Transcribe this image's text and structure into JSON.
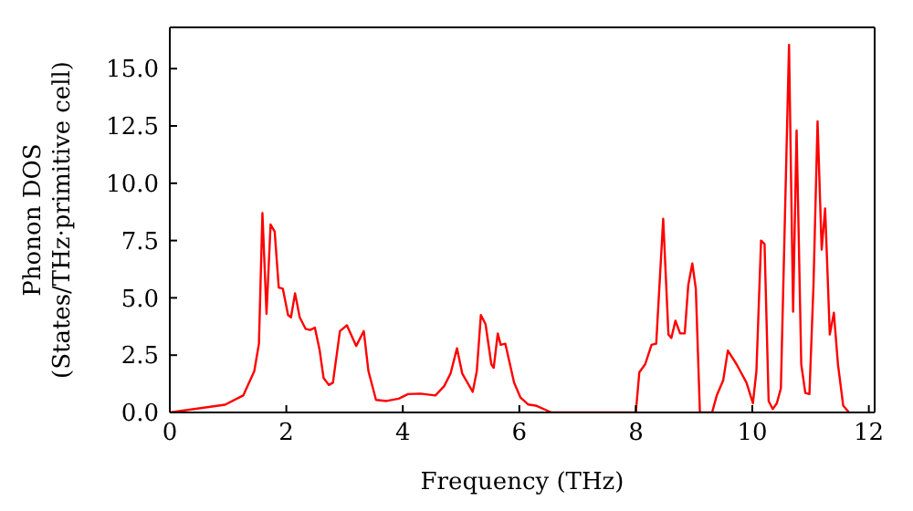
{
  "chart_data": {
    "type": "line",
    "xlabel": "Frequency (THz)",
    "ylabel": "Phonon DOS\n(States/THz·primitive cell)",
    "x": [
      0,
      0.95,
      1.26,
      1.45,
      1.53,
      1.59,
      1.66,
      1.73,
      1.8,
      1.87,
      1.94,
      2.03,
      2.08,
      2.15,
      2.23,
      2.33,
      2.41,
      2.49,
      2.57,
      2.64,
      2.73,
      2.8,
      2.92,
      3.04,
      3.2,
      3.33,
      3.41,
      3.54,
      3.72,
      3.93,
      4.09,
      4.3,
      4.56,
      4.71,
      4.82,
      4.93,
      5.02,
      5.2,
      5.27,
      5.34,
      5.42,
      5.52,
      5.56,
      5.63,
      5.68,
      5.76,
      5.91,
      6.02,
      6.15,
      6.28,
      6.49,
      6.55,
      8.0,
      8.06,
      8.16,
      8.27,
      8.35,
      8.47,
      8.56,
      8.61,
      8.68,
      8.76,
      8.84,
      8.9,
      8.97,
      9.03,
      9.1,
      9.31,
      9.39,
      9.5,
      9.58,
      9.73,
      9.9,
      10.01,
      10.07,
      10.15,
      10.21,
      10.28,
      10.35,
      10.42,
      10.49,
      10.63,
      10.7,
      10.76,
      10.84,
      10.91,
      10.98,
      11.05,
      11.12,
      11.19,
      11.25,
      11.33,
      11.4,
      11.47,
      11.56,
      11.66
    ],
    "series": [
      {
        "color": "#ff0000",
        "values": [
          0,
          0.34,
          0.74,
          1.8,
          3.0,
          8.7,
          4.3,
          8.2,
          7.9,
          5.45,
          5.4,
          4.25,
          4.15,
          5.2,
          4.15,
          3.65,
          3.6,
          3.7,
          2.75,
          1.5,
          1.2,
          1.3,
          3.55,
          3.8,
          2.9,
          3.55,
          1.8,
          0.55,
          0.5,
          0.6,
          0.8,
          0.82,
          0.74,
          1.15,
          1.7,
          2.8,
          1.7,
          0.9,
          1.8,
          4.25,
          3.85,
          2.1,
          1.95,
          3.45,
          2.95,
          3.0,
          1.3,
          0.65,
          0.35,
          0.3,
          0.07,
          0,
          0,
          1.75,
          2.1,
          2.95,
          3.0,
          8.45,
          3.4,
          3.25,
          4.0,
          3.45,
          3.45,
          5.55,
          6.5,
          5.4,
          0,
          0,
          0.75,
          1.4,
          2.7,
          2.1,
          1.3,
          0.4,
          1.8,
          7.5,
          7.35,
          0.5,
          0.15,
          0.4,
          1.05,
          16.04,
          4.4,
          12.3,
          2.1,
          0.85,
          0.8,
          5.55,
          12.7,
          7.1,
          8.9,
          3.4,
          4.35,
          2.1,
          0.3,
          0
        ]
      }
    ],
    "xlim": [
      0,
      12.1
    ],
    "xticks": [
      0,
      2,
      4,
      6,
      8,
      10,
      12
    ],
    "ylim": [
      0,
      16.8
    ],
    "yticks": [
      {
        "value": 0,
        "label": "0.0"
      },
      {
        "value": 2.5,
        "label": "2.5"
      },
      {
        "value": 5,
        "label": "5.0"
      },
      {
        "value": 7.5,
        "label": "7.5"
      },
      {
        "value": 10,
        "label": "10.0"
      },
      {
        "value": 12.5,
        "label": "12.5"
      },
      {
        "value": 15,
        "label": "15.0"
      }
    ],
    "grid": false,
    "legend": false,
    "marker": "none",
    "line_style": "solid"
  }
}
